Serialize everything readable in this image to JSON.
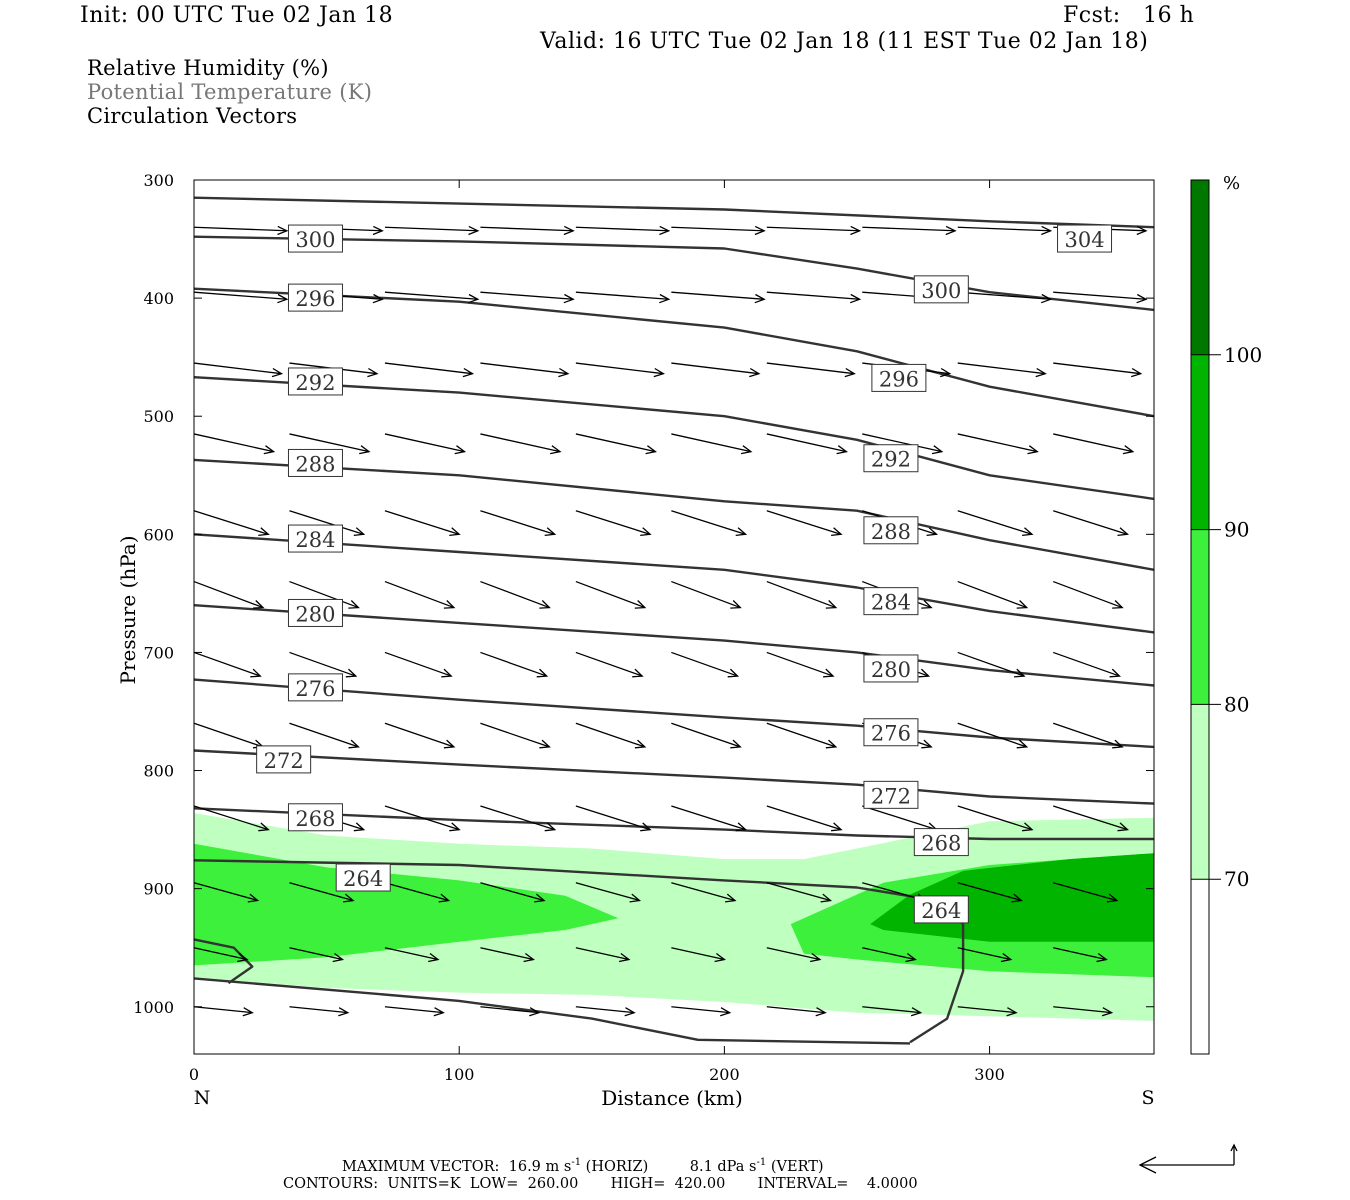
{
  "header": {
    "init": "Init: 00 UTC Tue 02 Jan 18",
    "fcst": "Fcst:   16 h",
    "valid": "Valid: 16 UTC Tue 02 Jan 18 (11 EST Tue 02 Jan 18)"
  },
  "legend": {
    "line1": "Relative Humidity (%)",
    "line2": "Potential Temperature (K)",
    "line3": "Circulation Vectors",
    "line2_color": "#777777"
  },
  "footer": {
    "line1_prefix": "MAXIMUM VECTOR:  16.9 m s",
    "line1_exp": "-1",
    "line1_mid": " (HORIZ)         8.1 dPa s",
    "line1_exp2": "-1",
    "line1_suffix": " (VERT)",
    "line2": "CONTOURS:  UNITS=K  LOW=  260.00       HIGH=  420.00       INTERVAL=    4.0000"
  },
  "colors": {
    "rh70": "#bfffbf",
    "rh80": "#3cf03c",
    "rh90": "#00b400",
    "rh100": "#007800",
    "theta_line": "#333333",
    "vector": "#000000"
  },
  "chart_data": {
    "type": "cross-section",
    "title": "",
    "xlabel": "Distance (km)",
    "ylabel": "Pressure (hPa)",
    "xlim": [
      0,
      362
    ],
    "ylim": [
      1040,
      300
    ],
    "x_ticks": [
      0,
      100,
      200,
      300
    ],
    "y_ticks": [
      300,
      400,
      500,
      600,
      700,
      800,
      900,
      1000
    ],
    "x_end_labels": {
      "left": "N",
      "right": "S"
    },
    "colorbar": {
      "unit": "%",
      "levels": [
        70,
        80,
        90,
        100
      ],
      "fills": [
        "#ffffff",
        "#bfffbf",
        "#3cf03c",
        "#00b400",
        "#007800"
      ]
    },
    "rh_fill": [
      {
        "level": 70,
        "polygon": [
          [
            0,
            836
          ],
          [
            50,
            855
          ],
          [
            100,
            862
          ],
          [
            150,
            866
          ],
          [
            200,
            875
          ],
          [
            230,
            875
          ],
          [
            250,
            866
          ],
          [
            300,
            843
          ],
          [
            362,
            840
          ],
          [
            362,
            1012
          ],
          [
            300,
            1008
          ],
          [
            250,
            1005
          ],
          [
            200,
            996
          ],
          [
            150,
            990
          ],
          [
            100,
            988
          ],
          [
            50,
            984
          ],
          [
            0,
            975
          ]
        ]
      },
      {
        "level": 80,
        "polygon": [
          [
            0,
            862
          ],
          [
            50,
            882
          ],
          [
            100,
            893
          ],
          [
            140,
            906
          ],
          [
            160,
            925
          ],
          [
            140,
            935
          ],
          [
            100,
            945
          ],
          [
            50,
            958
          ],
          [
            0,
            965
          ]
        ]
      },
      {
        "level": 80,
        "polygon": [
          [
            225,
            930
          ],
          [
            260,
            895
          ],
          [
            300,
            880
          ],
          [
            362,
            870
          ],
          [
            362,
            975
          ],
          [
            300,
            970
          ],
          [
            250,
            960
          ],
          [
            230,
            955
          ]
        ]
      },
      {
        "level": 90,
        "polygon": [
          [
            255,
            930
          ],
          [
            270,
            905
          ],
          [
            290,
            885
          ],
          [
            330,
            875
          ],
          [
            362,
            870
          ],
          [
            362,
            945
          ],
          [
            300,
            945
          ],
          [
            260,
            935
          ]
        ]
      }
    ],
    "theta_contours": [
      {
        "value": 304,
        "points": [
          [
            0,
            315
          ],
          [
            100,
            320
          ],
          [
            200,
            325
          ],
          [
            300,
            335
          ],
          [
            362,
            340
          ]
        ]
      },
      {
        "value": 300,
        "points": [
          [
            0,
            348
          ],
          [
            100,
            352
          ],
          [
            200,
            358
          ],
          [
            250,
            375
          ],
          [
            300,
            395
          ],
          [
            362,
            410
          ]
        ]
      },
      {
        "value": 296,
        "points": [
          [
            0,
            392
          ],
          [
            100,
            403
          ],
          [
            200,
            425
          ],
          [
            250,
            445
          ],
          [
            300,
            475
          ],
          [
            362,
            500
          ]
        ]
      },
      {
        "value": 292,
        "points": [
          [
            0,
            467
          ],
          [
            100,
            480
          ],
          [
            200,
            500
          ],
          [
            250,
            520
          ],
          [
            300,
            550
          ],
          [
            362,
            570
          ]
        ]
      },
      {
        "value": 288,
        "points": [
          [
            0,
            537
          ],
          [
            100,
            550
          ],
          [
            200,
            572
          ],
          [
            250,
            580
          ],
          [
            300,
            605
          ],
          [
            362,
            630
          ]
        ]
      },
      {
        "value": 284,
        "points": [
          [
            0,
            600
          ],
          [
            100,
            615
          ],
          [
            200,
            630
          ],
          [
            250,
            645
          ],
          [
            300,
            665
          ],
          [
            362,
            683
          ]
        ]
      },
      {
        "value": 280,
        "points": [
          [
            0,
            660
          ],
          [
            100,
            675
          ],
          [
            200,
            690
          ],
          [
            250,
            700
          ],
          [
            300,
            715
          ],
          [
            362,
            728
          ]
        ]
      },
      {
        "value": 276,
        "points": [
          [
            0,
            723
          ],
          [
            100,
            740
          ],
          [
            200,
            755
          ],
          [
            250,
            762
          ],
          [
            300,
            772
          ],
          [
            362,
            780
          ]
        ]
      },
      {
        "value": 272,
        "points": [
          [
            0,
            783
          ],
          [
            100,
            795
          ],
          [
            200,
            806
          ],
          [
            250,
            812
          ],
          [
            300,
            822
          ],
          [
            362,
            828
          ]
        ]
      },
      {
        "value": 268,
        "points": [
          [
            0,
            832
          ],
          [
            100,
            842
          ],
          [
            200,
            850
          ],
          [
            250,
            855
          ],
          [
            300,
            858
          ],
          [
            362,
            858
          ]
        ]
      },
      {
        "value": 264,
        "points": [
          [
            0,
            876
          ],
          [
            100,
            880
          ],
          [
            200,
            893
          ],
          [
            250,
            899
          ],
          [
            280,
            910
          ],
          [
            290,
            930
          ],
          [
            290,
            970
          ],
          [
            284,
            1010
          ],
          [
            270,
            1030
          ]
        ]
      },
      {
        "value": 260,
        "points": [
          [
            0,
            976
          ],
          [
            100,
            995
          ],
          [
            150,
            1010
          ],
          [
            190,
            1028
          ],
          [
            270,
            1031
          ]
        ]
      },
      {
        "value": 264,
        "points": [
          [
            0,
            943
          ],
          [
            15,
            950
          ],
          [
            22,
            966
          ],
          [
            13,
            980
          ]
        ]
      }
    ],
    "theta_labels": [
      {
        "value": 300,
        "x": 36,
        "p": 350
      },
      {
        "value": 304,
        "x": 326,
        "p": 350
      },
      {
        "value": 296,
        "x": 36,
        "p": 400
      },
      {
        "value": 300,
        "x": 272,
        "p": 393
      },
      {
        "value": 292,
        "x": 36,
        "p": 471
      },
      {
        "value": 296,
        "x": 256,
        "p": 468
      },
      {
        "value": 288,
        "x": 36,
        "p": 540
      },
      {
        "value": 292,
        "x": 253,
        "p": 536
      },
      {
        "value": 284,
        "x": 36,
        "p": 604
      },
      {
        "value": 288,
        "x": 253,
        "p": 597
      },
      {
        "value": 280,
        "x": 36,
        "p": 667
      },
      {
        "value": 284,
        "x": 253,
        "p": 657
      },
      {
        "value": 276,
        "x": 36,
        "p": 730
      },
      {
        "value": 280,
        "x": 253,
        "p": 714
      },
      {
        "value": 272,
        "x": 24,
        "p": 791
      },
      {
        "value": 276,
        "x": 253,
        "p": 768
      },
      {
        "value": 268,
        "x": 36,
        "p": 840
      },
      {
        "value": 272,
        "x": 253,
        "p": 821
      },
      {
        "value": 264,
        "x": 54,
        "p": 891
      },
      {
        "value": 268,
        "x": 272,
        "p": 861
      },
      {
        "value": 264,
        "x": 272,
        "p": 918
      }
    ],
    "vector_rows": [
      {
        "p": 340,
        "dx": 35,
        "dp": 3
      },
      {
        "p": 395,
        "dx": 35,
        "dp": 6
      },
      {
        "p": 455,
        "dx": 33,
        "dp": 9
      },
      {
        "p": 515,
        "dx": 30,
        "dp": 15
      },
      {
        "p": 580,
        "dx": 28,
        "dp": 20
      },
      {
        "p": 640,
        "dx": 26,
        "dp": 22
      },
      {
        "p": 700,
        "dx": 25,
        "dp": 20
      },
      {
        "p": 760,
        "dx": 26,
        "dp": 20
      },
      {
        "p": 830,
        "dx": 28,
        "dp": 20
      },
      {
        "p": 895,
        "dx": 24,
        "dp": 15
      },
      {
        "p": 950,
        "dx": 20,
        "dp": 10
      },
      {
        "p": 1000,
        "dx": 22,
        "dp": 5
      }
    ],
    "vector_columns": [
      0,
      36,
      72,
      108,
      144,
      180,
      216,
      252,
      288,
      324
    ]
  }
}
